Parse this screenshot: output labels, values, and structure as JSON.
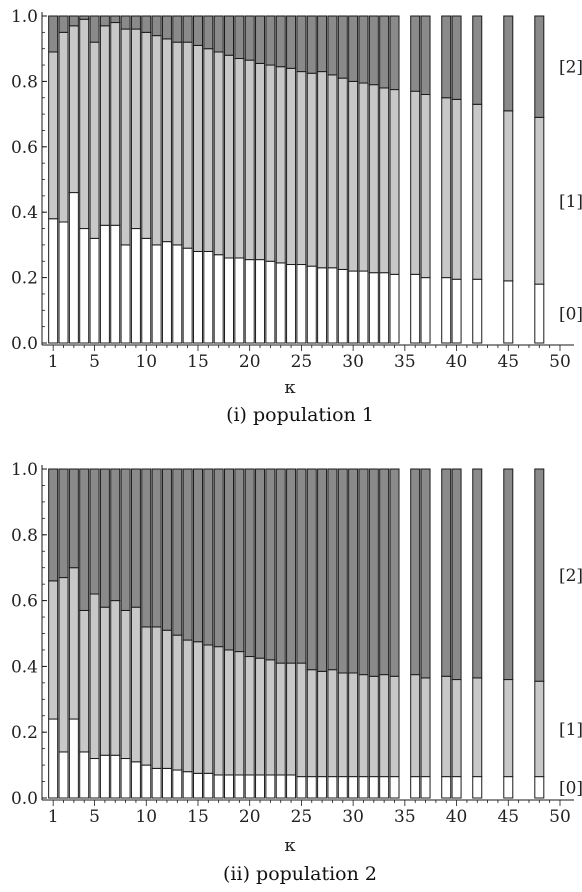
{
  "colors": {
    "level0": "#ffffff",
    "level1": "#c8c8c8",
    "level2": "#8a8a8a",
    "stroke": "#1a1a1a"
  },
  "chart_data": [
    {
      "type": "bar",
      "stacked": true,
      "caption": "(i) population 1",
      "xlabel": "κ",
      "ylabel": "",
      "ylim": [
        0,
        1
      ],
      "xlim": [
        0,
        50
      ],
      "xticks": [
        1,
        5,
        10,
        15,
        20,
        25,
        30,
        35,
        40,
        45,
        50
      ],
      "yticks": [
        "0.0",
        "0.2",
        "0.4",
        "0.6",
        "0.8",
        "1.0"
      ],
      "legend": [
        "[0]",
        "[1]",
        "[2]"
      ],
      "x": [
        1,
        2,
        3,
        4,
        5,
        6,
        7,
        8,
        9,
        10,
        11,
        12,
        13,
        14,
        15,
        16,
        17,
        18,
        19,
        20,
        21,
        22,
        23,
        24,
        25,
        26,
        27,
        28,
        29,
        30,
        31,
        32,
        33,
        34,
        36,
        37,
        39,
        40,
        42,
        45,
        48
      ],
      "series": [
        {
          "name": "[0]",
          "values": [
            0.38,
            0.37,
            0.46,
            0.35,
            0.32,
            0.36,
            0.36,
            0.3,
            0.35,
            0.32,
            0.3,
            0.31,
            0.3,
            0.29,
            0.28,
            0.28,
            0.27,
            0.26,
            0.26,
            0.255,
            0.255,
            0.25,
            0.245,
            0.24,
            0.24,
            0.235,
            0.23,
            0.23,
            0.225,
            0.22,
            0.22,
            0.215,
            0.215,
            0.21,
            0.21,
            0.2,
            0.2,
            0.195,
            0.195,
            0.19,
            0.18
          ]
        },
        {
          "name": "[1]",
          "values": [
            0.51,
            0.58,
            0.51,
            0.64,
            0.6,
            0.61,
            0.62,
            0.66,
            0.61,
            0.63,
            0.64,
            0.62,
            0.62,
            0.63,
            0.63,
            0.62,
            0.62,
            0.62,
            0.61,
            0.61,
            0.6,
            0.6,
            0.6,
            0.6,
            0.59,
            0.59,
            0.6,
            0.59,
            0.585,
            0.58,
            0.575,
            0.575,
            0.565,
            0.565,
            0.56,
            0.56,
            0.55,
            0.55,
            0.535,
            0.52,
            0.51
          ]
        },
        {
          "name": "[2]",
          "values": [
            0.11,
            0.05,
            0.03,
            0.01,
            0.08,
            0.03,
            0.02,
            0.04,
            0.04,
            0.05,
            0.06,
            0.07,
            0.08,
            0.08,
            0.09,
            0.1,
            0.11,
            0.12,
            0.13,
            0.135,
            0.145,
            0.15,
            0.155,
            0.16,
            0.17,
            0.175,
            0.17,
            0.18,
            0.19,
            0.2,
            0.205,
            0.21,
            0.22,
            0.225,
            0.23,
            0.24,
            0.25,
            0.255,
            0.27,
            0.29,
            0.31
          ]
        }
      ]
    },
    {
      "type": "bar",
      "stacked": true,
      "caption": "(ii) population 2",
      "xlabel": "κ",
      "ylabel": "",
      "ylim": [
        0,
        1
      ],
      "xlim": [
        0,
        50
      ],
      "xticks": [
        1,
        5,
        10,
        15,
        20,
        25,
        30,
        35,
        40,
        45,
        50
      ],
      "yticks": [
        "0.0",
        "0.2",
        "0.4",
        "0.6",
        "0.8",
        "1.0"
      ],
      "legend": [
        "[0]",
        "[1]",
        "[2]"
      ],
      "x": [
        1,
        2,
        3,
        4,
        5,
        6,
        7,
        8,
        9,
        10,
        11,
        12,
        13,
        14,
        15,
        16,
        17,
        18,
        19,
        20,
        21,
        22,
        23,
        24,
        25,
        26,
        27,
        28,
        29,
        30,
        31,
        32,
        33,
        34,
        36,
        37,
        39,
        40,
        42,
        45,
        48
      ],
      "series": [
        {
          "name": "[0]",
          "values": [
            0.24,
            0.14,
            0.24,
            0.14,
            0.12,
            0.13,
            0.13,
            0.12,
            0.11,
            0.1,
            0.09,
            0.09,
            0.085,
            0.08,
            0.075,
            0.075,
            0.07,
            0.07,
            0.07,
            0.07,
            0.07,
            0.07,
            0.07,
            0.07,
            0.065,
            0.065,
            0.065,
            0.065,
            0.065,
            0.065,
            0.065,
            0.065,
            0.065,
            0.065,
            0.065,
            0.065,
            0.065,
            0.065,
            0.065,
            0.065,
            0.065
          ]
        },
        {
          "name": "[1]",
          "values": [
            0.42,
            0.53,
            0.46,
            0.43,
            0.5,
            0.45,
            0.47,
            0.45,
            0.47,
            0.42,
            0.43,
            0.42,
            0.41,
            0.4,
            0.4,
            0.39,
            0.39,
            0.38,
            0.375,
            0.36,
            0.355,
            0.35,
            0.34,
            0.34,
            0.345,
            0.325,
            0.32,
            0.325,
            0.315,
            0.315,
            0.31,
            0.305,
            0.31,
            0.305,
            0.31,
            0.3,
            0.305,
            0.295,
            0.3,
            0.295,
            0.29
          ]
        },
        {
          "name": "[2]",
          "values": [
            0.34,
            0.33,
            0.3,
            0.43,
            0.38,
            0.42,
            0.4,
            0.43,
            0.42,
            0.48,
            0.48,
            0.49,
            0.505,
            0.52,
            0.525,
            0.535,
            0.54,
            0.55,
            0.555,
            0.57,
            0.575,
            0.58,
            0.59,
            0.59,
            0.59,
            0.61,
            0.615,
            0.61,
            0.62,
            0.62,
            0.625,
            0.63,
            0.625,
            0.63,
            0.625,
            0.635,
            0.63,
            0.64,
            0.635,
            0.64,
            0.645
          ]
        }
      ]
    }
  ]
}
